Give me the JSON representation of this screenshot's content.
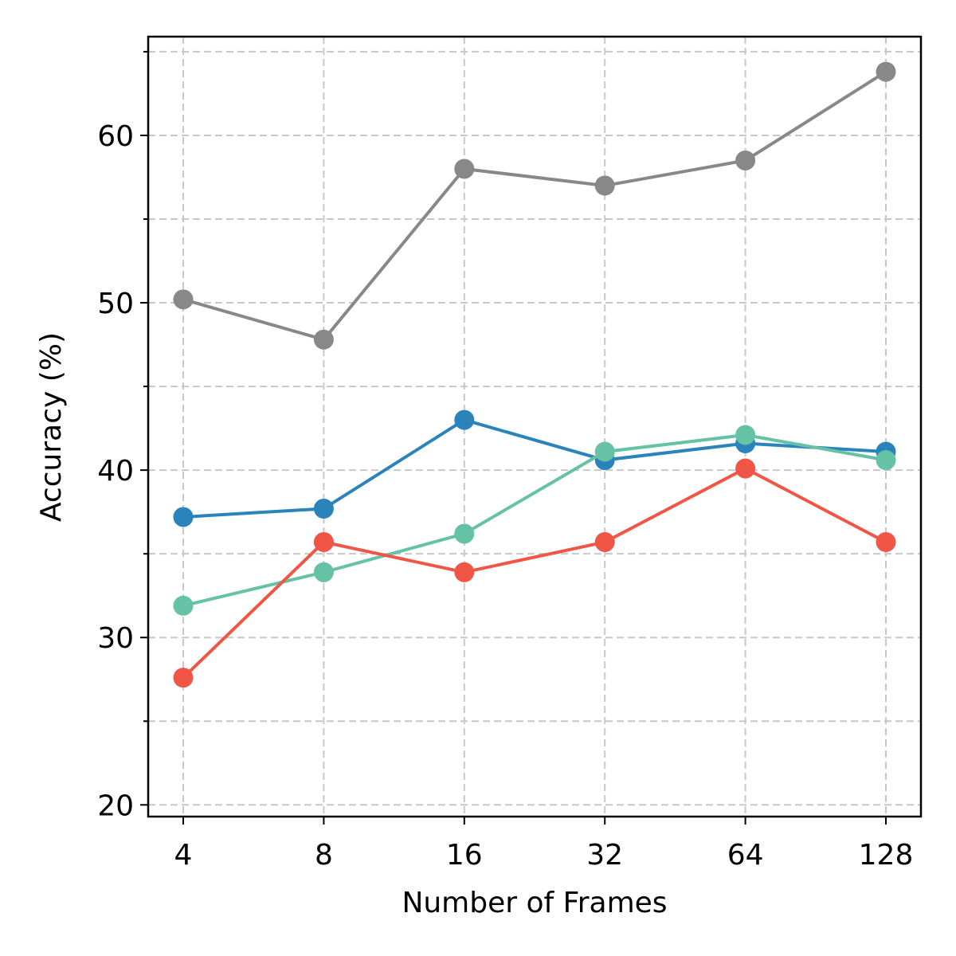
{
  "chart_data": {
    "type": "line",
    "title": "",
    "xlabel": "Number of Frames",
    "ylabel": "Accuracy (%)",
    "categories": [
      "4",
      "8",
      "16",
      "32",
      "64",
      "128"
    ],
    "x_scale": "log2",
    "ylim": [
      19.3,
      65.9
    ],
    "y_major_ticks": [
      20,
      30,
      40,
      50,
      60
    ],
    "y_minor_ticks": [
      25,
      35,
      45,
      55,
      65
    ],
    "grid": true,
    "legend": "none",
    "marker": "circle",
    "series": [
      {
        "color": "#888888",
        "values": [
          50.2,
          47.8,
          58.0,
          57.0,
          58.5,
          63.8
        ]
      },
      {
        "color": "#2a83ba",
        "values": [
          37.2,
          37.7,
          43.0,
          40.6,
          41.6,
          41.1
        ]
      },
      {
        "color": "#66c2a5",
        "values": [
          31.9,
          33.9,
          36.2,
          41.1,
          42.1,
          40.6
        ]
      },
      {
        "color": "#f05545",
        "values": [
          27.6,
          35.7,
          33.9,
          35.7,
          40.1,
          35.7
        ]
      }
    ]
  }
}
